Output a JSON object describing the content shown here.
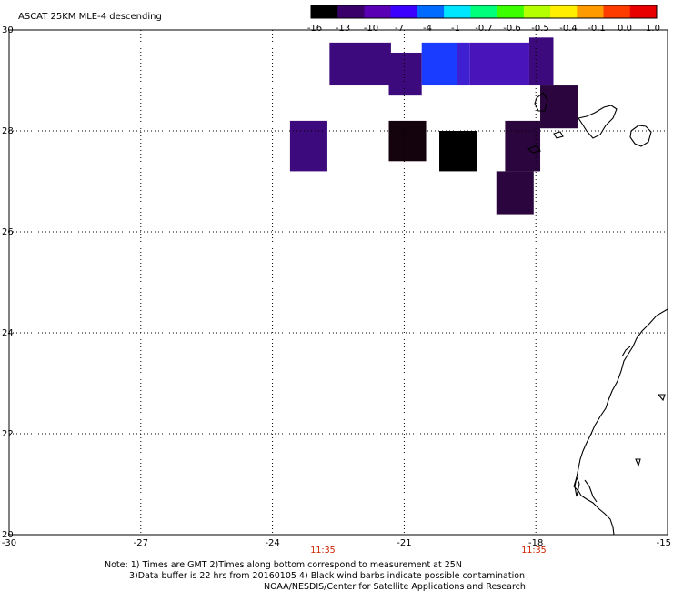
{
  "title": "ASCAT 25KM MLE-4 descending",
  "colorbar": {
    "labels": [
      "-16",
      "-13",
      "-10",
      "-7",
      "-4",
      "-1",
      "-0.7",
      "-0.6",
      "-0.5",
      "-0.4",
      "-0.1",
      "0.0",
      "1.0"
    ],
    "colors": [
      "#000000",
      "#3a006a",
      "#5a00b4",
      "#3c00ff",
      "#006cff",
      "#00e6ff",
      "#00ff7a",
      "#3cff00",
      "#b4ff00",
      "#ffee00",
      "#ff9a00",
      "#ff3c00",
      "#e80000"
    ]
  },
  "axes": {
    "lat_labels": [
      "30",
      "28",
      "26",
      "24",
      "22",
      "20"
    ],
    "lon_labels": [
      "-30",
      "-27",
      "-24",
      "-21",
      "-18",
      "-15"
    ],
    "lat_range": [
      20,
      30
    ],
    "lon_range": [
      -30,
      -15
    ]
  },
  "times": [
    "11:35",
    "11:35"
  ],
  "time_color": "#cc2200",
  "notes": [
    "Note: 1) Times are GMT 2)Times along bottom correspond to measurement at 25N",
    "3)Data buffer is 22 hrs from 20160105 4) Black wind barbs indicate possible contamination",
    "NOAA/NESDIS/Center for Satellite Applications and Research"
  ],
  "data_cells": [
    {
      "lon0": -22.7,
      "lon1": -21.3,
      "lat0": 28.9,
      "lat1": 29.75,
      "color": "#3c0a7c"
    },
    {
      "lon0": -21.35,
      "lon1": -20.6,
      "lat0": 28.7,
      "lat1": 29.55,
      "color": "#3c0a7c"
    },
    {
      "lon0": -20.6,
      "lon1": -19.8,
      "lat0": 28.9,
      "lat1": 29.75,
      "color": "#1a3cff"
    },
    {
      "lon0": -19.8,
      "lon1": -19.5,
      "lat0": 28.9,
      "lat1": 29.75,
      "color": "#3f20d0"
    },
    {
      "lon0": -19.5,
      "lon1": -18.15,
      "lat0": 28.9,
      "lat1": 29.75,
      "color": "#4a14bb"
    },
    {
      "lon0": -18.15,
      "lon1": -17.6,
      "lat0": 28.9,
      "lat1": 29.85,
      "color": "#3c0a7c"
    },
    {
      "lon0": -23.6,
      "lon1": -22.75,
      "lat0": 27.2,
      "lat1": 28.2,
      "color": "#3c0a7c"
    },
    {
      "lon0": -21.35,
      "lon1": -20.5,
      "lat0": 27.4,
      "lat1": 28.2,
      "color": "#14020c"
    },
    {
      "lon0": -20.2,
      "lon1": -19.35,
      "lat0": 27.2,
      "lat1": 28.0,
      "color": "#000000"
    },
    {
      "lon0": -18.7,
      "lon1": -17.9,
      "lat0": 27.2,
      "lat1": 28.2,
      "color": "#2a053e"
    },
    {
      "lon0": -17.9,
      "lon1": -17.05,
      "lat0": 28.05,
      "lat1": 28.9,
      "color": "#2a053e"
    },
    {
      "lon0": -18.9,
      "lon1": -18.05,
      "lat0": 26.35,
      "lat1": 27.2,
      "color": "#2a053e"
    }
  ]
}
